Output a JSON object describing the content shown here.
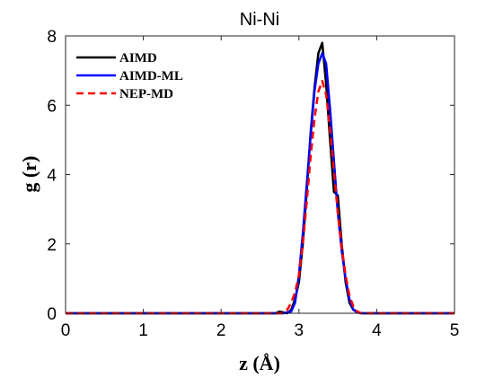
{
  "chart_data": {
    "type": "line",
    "title": "Ni-Ni",
    "xlabel": "z (Å)",
    "ylabel": "g (r)",
    "xlim": [
      0,
      5
    ],
    "ylim": [
      0,
      8
    ],
    "xticks": [
      0,
      1,
      2,
      3,
      4,
      5
    ],
    "yticks": [
      0,
      2,
      4,
      6,
      8
    ],
    "xtick_labels": [
      "0",
      "1",
      "2",
      "3",
      "4",
      "5"
    ],
    "ytick_labels": [
      "0",
      "2",
      "4",
      "6",
      "8"
    ],
    "grid": false,
    "box": true,
    "legend_position": "top-left",
    "series": [
      {
        "name": "AIMD",
        "color": "#000000",
        "dash": "solid",
        "x": [
          0,
          2.5,
          2.7,
          2.75,
          2.85,
          2.9,
          2.95,
          3.0,
          3.05,
          3.1,
          3.15,
          3.2,
          3.25,
          3.3,
          3.35,
          3.4,
          3.45,
          3.5,
          3.55,
          3.6,
          3.65,
          3.7,
          3.75,
          3.8,
          4.0,
          5.0
        ],
        "y": [
          0,
          0,
          0,
          0.05,
          0,
          0.1,
          0.4,
          0.9,
          2.0,
          3.5,
          5.2,
          6.5,
          7.5,
          7.8,
          6.6,
          5.0,
          3.5,
          3.4,
          2.0,
          0.9,
          0.3,
          0.1,
          0.05,
          0,
          0,
          0
        ]
      },
      {
        "name": "AIMD-ML",
        "color": "#0000ff",
        "dash": "solid",
        "x": [
          0,
          2.5,
          2.8,
          2.9,
          2.95,
          3.0,
          3.05,
          3.1,
          3.15,
          3.2,
          3.25,
          3.3,
          3.35,
          3.4,
          3.45,
          3.5,
          3.55,
          3.6,
          3.65,
          3.7,
          3.75,
          3.8,
          4.0,
          5.0
        ],
        "y": [
          0,
          0,
          0,
          0.05,
          0.3,
          1.1,
          2.3,
          3.7,
          5.1,
          6.4,
          7.2,
          7.5,
          7.2,
          5.9,
          4.4,
          2.9,
          1.8,
          1.0,
          0.4,
          0.1,
          0.02,
          0,
          0,
          0
        ]
      },
      {
        "name": "NEP-MD",
        "color": "#ff0000",
        "dash": "dashed",
        "x": [
          0,
          2.5,
          2.8,
          2.85,
          2.9,
          2.95,
          3.0,
          3.05,
          3.1,
          3.15,
          3.2,
          3.25,
          3.3,
          3.35,
          3.4,
          3.45,
          3.5,
          3.55,
          3.6,
          3.65,
          3.7,
          3.75,
          3.8,
          4.0,
          5.0
        ],
        "y": [
          0,
          0,
          0,
          0.1,
          0.3,
          0.6,
          1.1,
          2.0,
          3.2,
          4.5,
          5.6,
          6.4,
          6.7,
          6.3,
          5.3,
          4.1,
          2.9,
          1.9,
          1.1,
          0.5,
          0.2,
          0.05,
          0,
          0,
          0
        ]
      }
    ]
  }
}
